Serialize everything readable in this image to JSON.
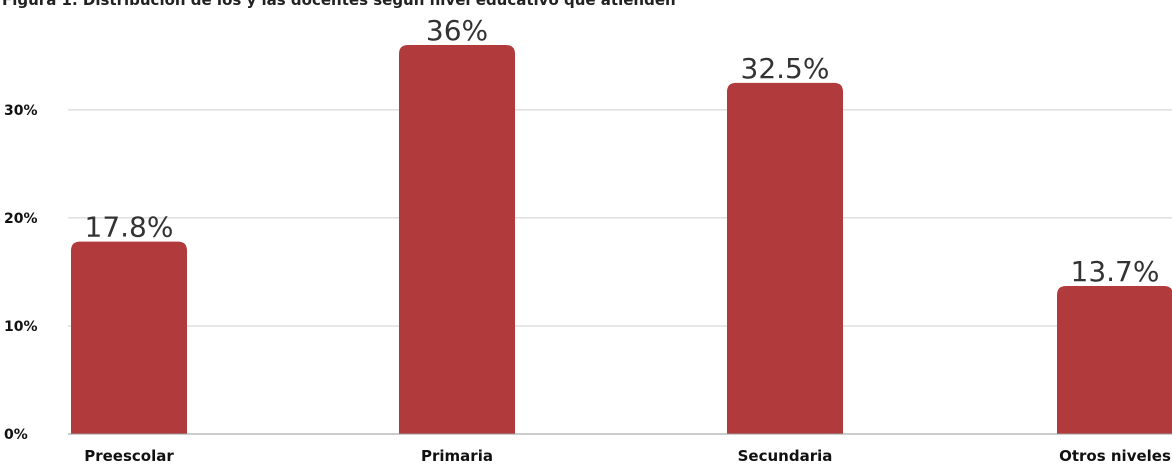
{
  "chart_title": "Figura 1. Distribución de los y las docentes según nivel educativo que atienden",
  "chart_data": {
    "type": "bar",
    "title": "Figura 1. Distribución de los y las docentes según nivel educativo que atienden",
    "categories": [
      "Preescolar",
      "Primaria",
      "Secundaria",
      "Otros niveles"
    ],
    "values": [
      17.8,
      36,
      32.5,
      13.7
    ],
    "value_labels": [
      "17.8%",
      "36%",
      "32.5%",
      "13.7%"
    ],
    "y_ticks": [
      0,
      10,
      20,
      30
    ],
    "y_tick_labels": [
      "0%",
      "10%",
      "20%",
      "30%"
    ],
    "ylim": [
      0,
      36
    ],
    "grid": true,
    "bar_color": "#b03a3c",
    "gridline_color": "#cfcfcf"
  }
}
